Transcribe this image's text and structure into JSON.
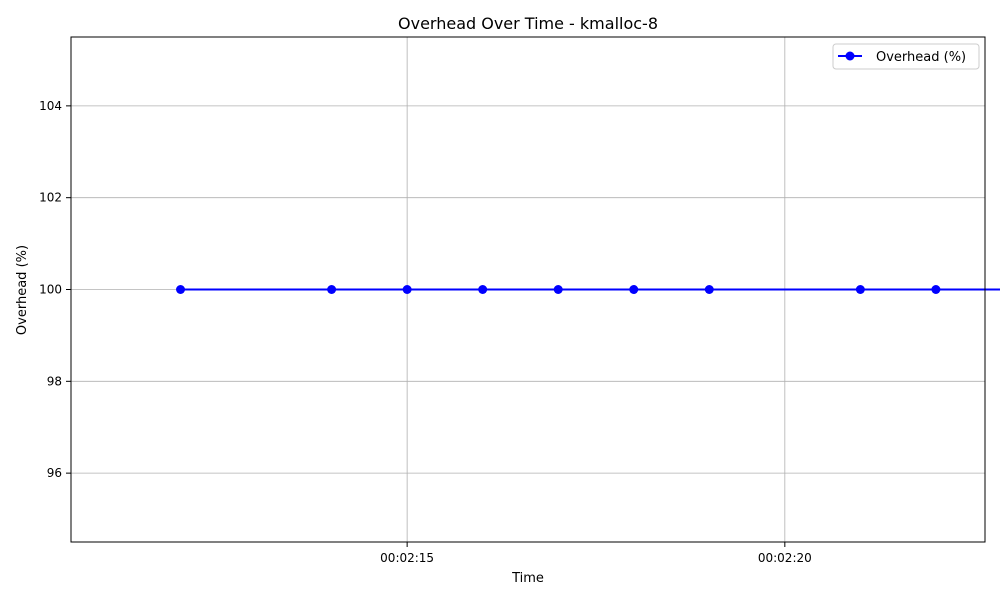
{
  "chart_data": {
    "type": "line",
    "title": "Overhead Over Time - kmalloc-8",
    "xlabel": "Time",
    "ylabel": "Overhead (%)",
    "x_unit": "seconds",
    "xlim": [
      130.55,
      142.65
    ],
    "ylim": [
      94.5,
      105.5
    ],
    "x_ticks": [
      {
        "value": 135,
        "label": "00:02:15"
      },
      {
        "value": 140,
        "label": "00:02:20"
      }
    ],
    "y_ticks": [
      {
        "value": 96,
        "label": "96"
      },
      {
        "value": 98,
        "label": "98"
      },
      {
        "value": 100,
        "label": "100"
      },
      {
        "value": 102,
        "label": "102"
      },
      {
        "value": 104,
        "label": "104"
      }
    ],
    "grid": true,
    "legend_position": "top-right",
    "series": [
      {
        "name": "Overhead (%)",
        "color": "#0000ff",
        "marker": "circle",
        "x": [
          132,
          134,
          135,
          136,
          137,
          138,
          139,
          141,
          142,
          143
        ],
        "y": [
          100,
          100,
          100,
          100,
          100,
          100,
          100,
          100,
          100,
          100
        ]
      }
    ]
  }
}
